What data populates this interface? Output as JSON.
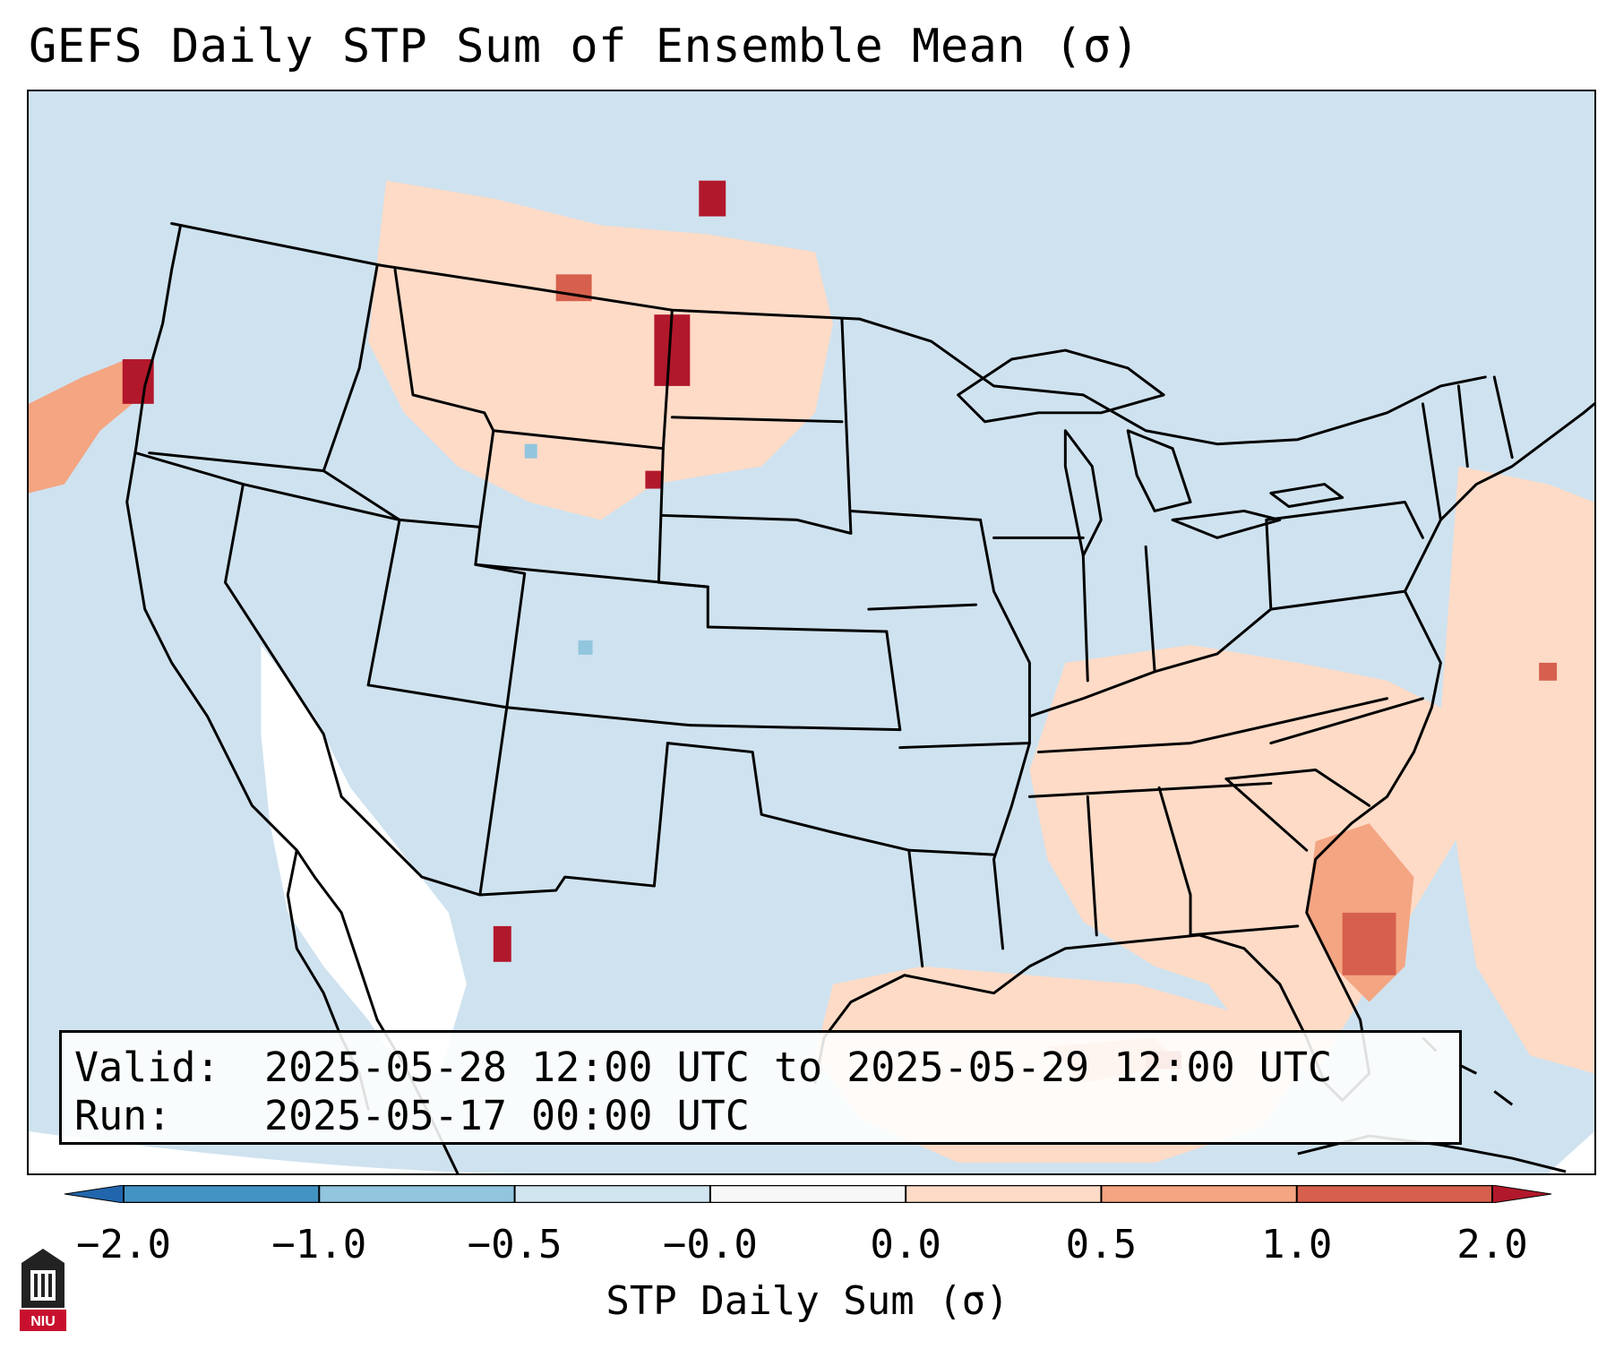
{
  "title": "GEFS Daily STP Sum of Ensemble Mean (σ)",
  "info": {
    "valid_label": "Valid:",
    "valid_text": "2025-05-28 12:00 UTC to 2025-05-29 12:00 UTC",
    "run_label": "Run:",
    "run_text": "2025-05-17 00:00 UTC"
  },
  "colorbar": {
    "label": "STP Daily Sum (σ)",
    "ticks": [
      "−2.0",
      "−1.0",
      "−0.5",
      "−0.0",
      "0.0",
      "0.5",
      "1.0",
      "2.0"
    ],
    "colors": [
      "#2166ac",
      "#4393c3",
      "#92c5de",
      "#d1e5f0",
      "#f7f7f7",
      "#fddbc7",
      "#f4a582",
      "#d6604d",
      "#b2182b"
    ],
    "bins": [
      {
        "min": -2.0,
        "max": -1.0,
        "color": "#4393c3"
      },
      {
        "min": -1.0,
        "max": -0.5,
        "color": "#92c5de"
      },
      {
        "min": -0.5,
        "max": -0.0,
        "color": "#d1e5f0"
      },
      {
        "min": -0.0,
        "max": 0.0,
        "color": "#f7f7f7"
      },
      {
        "min": 0.0,
        "max": 0.5,
        "color": "#fddbc7"
      },
      {
        "min": 0.5,
        "max": 1.0,
        "color": "#f4a582"
      },
      {
        "min": 1.0,
        "max": 2.0,
        "color": "#d6604d"
      }
    ]
  },
  "map": {
    "region": "Continental United States",
    "background_color": "#cfe2ef",
    "border_color": "#000000"
  },
  "logo": {
    "name": "NIU"
  }
}
